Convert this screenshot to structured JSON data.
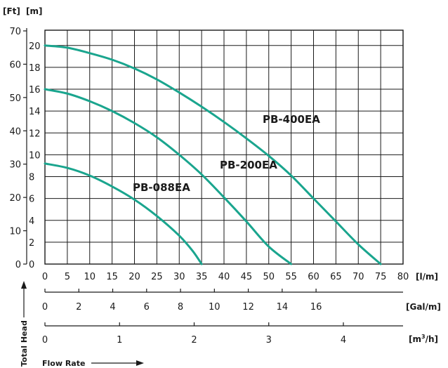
{
  "chart_data": {
    "type": "line",
    "title": "",
    "units": {
      "ft": "[Ft]",
      "m": "[m]",
      "lpm": "[l/m]",
      "gpm": "[Gal/m]",
      "m3h_base": "[m",
      "m3h_sup": "3",
      "m3h_tail": "/h]"
    },
    "side_labels": {
      "total_head": "Total Head",
      "flow_rate": "Flow Rate"
    },
    "x_lpm": {
      "min": 0,
      "max": 80,
      "ticks": [
        "0",
        "5",
        "10",
        "15",
        "20",
        "25",
        "30",
        "35",
        "40",
        "45",
        "50",
        "55",
        "60",
        "65",
        "70",
        "75",
        "80"
      ]
    },
    "y_m": {
      "min": 0,
      "max": 21.4,
      "ticks": [
        "0",
        "2",
        "4",
        "6",
        "8",
        "10",
        "12",
        "14",
        "16",
        "18",
        "20"
      ]
    },
    "y_ft_ticks": [
      "0",
      "10",
      "20",
      "30",
      "40",
      "50",
      "60",
      "70"
    ],
    "x_gpm_ticks": [
      "0",
      "2",
      "4",
      "6",
      "8",
      "10",
      "12",
      "14",
      "16"
    ],
    "x_m3h_ticks": [
      "0",
      "1",
      "2",
      "3",
      "4"
    ],
    "series": [
      {
        "name": "PB-088EA",
        "x": [
          0,
          5,
          10,
          15,
          20,
          25,
          30,
          33,
          35
        ],
        "y": [
          9.2,
          8.8,
          8.1,
          7.1,
          5.9,
          4.4,
          2.6,
          1.2,
          0
        ]
      },
      {
        "name": "PB-200EA",
        "x": [
          0,
          5,
          10,
          15,
          20,
          25,
          30,
          35,
          40,
          45,
          50,
          55
        ],
        "y": [
          16.0,
          15.6,
          14.9,
          14.0,
          12.9,
          11.6,
          10.0,
          8.2,
          6.1,
          3.9,
          1.6,
          0
        ]
      },
      {
        "name": "PB-400EA",
        "x": [
          0,
          5,
          10,
          15,
          20,
          25,
          30,
          35,
          40,
          45,
          50,
          55,
          60,
          65,
          70,
          75
        ],
        "y": [
          20.0,
          19.8,
          19.3,
          18.7,
          17.9,
          16.9,
          15.7,
          14.4,
          13.0,
          11.5,
          9.9,
          8.1,
          6.0,
          3.9,
          1.8,
          0
        ]
      }
    ],
    "legend": "none",
    "grid": true
  },
  "colors": {
    "curve": "#1aa58e",
    "grid": "#1a1a1a",
    "text": "#1a1a1a"
  }
}
